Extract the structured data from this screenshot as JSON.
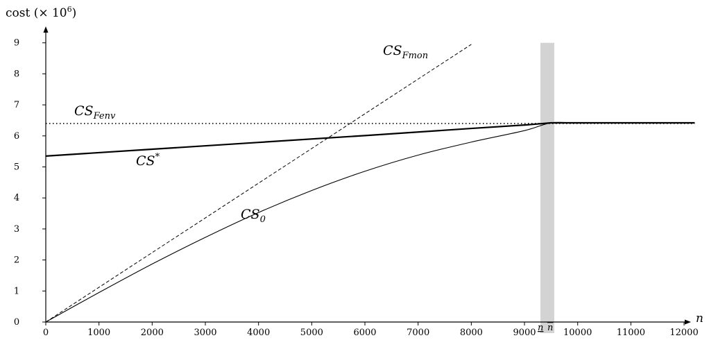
{
  "chart_data": {
    "type": "line",
    "title": "",
    "ylabel": "cost (× 10",
    "ylabel_exponent": "6",
    "ylabel_close": ")",
    "xlabel": "n",
    "xlim": [
      0,
      12200
    ],
    "ylim": [
      0,
      9
    ],
    "x_ticks": [
      0,
      1000,
      2000,
      3000,
      4000,
      5000,
      6000,
      7000,
      8000,
      9000,
      10000,
      11000,
      12000
    ],
    "y_ticks": [
      0,
      1,
      2,
      3,
      4,
      5,
      6,
      7,
      8,
      9
    ],
    "grid": false,
    "legend": "none",
    "band": {
      "x_from": 9300,
      "x_to": 9560,
      "y_from": 0,
      "y_to": 9,
      "color": "#d3d3d3",
      "label_lower": "n",
      "label_upper": "n"
    },
    "series": [
      {
        "name": "CS*",
        "style": "solid-thick",
        "color": "#000000",
        "x": [
          0,
          2000,
          4000,
          6000,
          8000,
          9000,
          9500,
          10000,
          11000,
          12200
        ],
        "y": [
          5.35,
          5.57,
          5.79,
          6.01,
          6.24,
          6.35,
          6.42,
          6.42,
          6.42,
          6.42
        ]
      },
      {
        "name": "CS0",
        "style": "solid-thin",
        "color": "#000000",
        "x": [
          0,
          1000,
          2000,
          3000,
          4000,
          5000,
          6000,
          7000,
          8000,
          9000,
          9500,
          10000,
          11000,
          12200
        ],
        "y": [
          0,
          0.95,
          1.87,
          2.73,
          3.53,
          4.24,
          4.86,
          5.38,
          5.8,
          6.17,
          6.42,
          6.42,
          6.42,
          6.42
        ]
      },
      {
        "name": "CSFmon",
        "style": "dashed",
        "color": "#000000",
        "x": [
          0,
          8000
        ],
        "y": [
          0,
          8.95
        ]
      },
      {
        "name": "CSFenv",
        "style": "dotted",
        "color": "#000000",
        "x": [
          0,
          12200
        ],
        "y": [
          6.4,
          6.4
        ]
      }
    ],
    "annotations": {
      "CSFmon": {
        "main": "CS",
        "sub": "Fmon"
      },
      "CSFenv": {
        "main": "CS",
        "sub": "Fenv"
      },
      "CSstar": {
        "main": "CS",
        "sup": "*"
      },
      "CS0": {
        "main": "CS",
        "sub": "0"
      }
    }
  }
}
